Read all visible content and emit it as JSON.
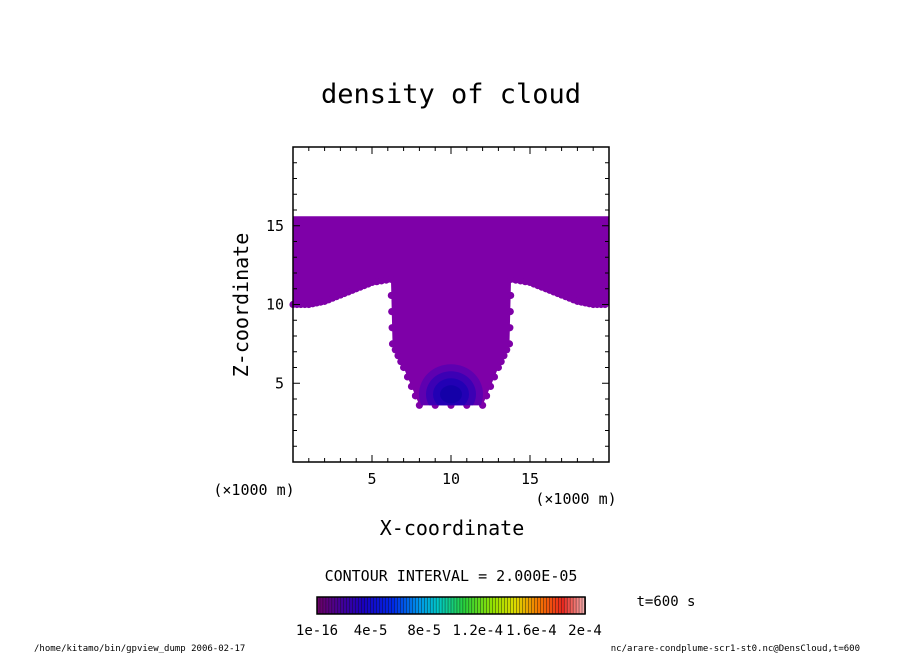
{
  "chart_data": {
    "type": "heatmap",
    "title": "density of cloud",
    "xlabel": "X-coordinate",
    "ylabel": "Z-coordinate",
    "x_unit": "(×1000 m)",
    "y_unit": "(×1000 m)",
    "xlim": [
      0,
      20
    ],
    "ylim": [
      0,
      20
    ],
    "x_ticks": [
      5,
      10,
      15
    ],
    "y_ticks": [
      5,
      10,
      15
    ],
    "contour_interval_text": "CONTOUR INTERVAL = 2.000E-05",
    "time_text": "t=600 s",
    "colorbar": {
      "min": 1e-16,
      "max": 0.0002,
      "tick_labels": [
        "1e-16",
        "4e-5",
        "8e-5",
        "1.2e-4",
        "1.6e-4",
        "2e-4"
      ]
    },
    "footer_left": "/home/kitamo/bin/gpview_dump  2006-02-17",
    "footer_right": "nc/arare-condplume-scr1-st0.nc@DensCloud,t=600",
    "cloud_region": {
      "top_z": 15.6,
      "plume_x": [
        6.2,
        13.8
      ],
      "plume_bottom_z": 3.6,
      "core": {
        "x": 10.0,
        "z": 4.3,
        "peak_value": 4e-05
      },
      "base_profile": [
        {
          "x": 0.0,
          "z": 10.0
        },
        {
          "x": 1.0,
          "z": 10.0
        },
        {
          "x": 2.0,
          "z": 10.2
        },
        {
          "x": 3.0,
          "z": 10.6
        },
        {
          "x": 4.0,
          "z": 11.0
        },
        {
          "x": 5.0,
          "z": 11.4
        },
        {
          "x": 6.2,
          "z": 11.6
        },
        {
          "x": 6.3,
          "z": 7.5
        },
        {
          "x": 7.0,
          "z": 6.0
        },
        {
          "x": 8.0,
          "z": 3.6
        },
        {
          "x": 12.0,
          "z": 3.6
        },
        {
          "x": 13.0,
          "z": 6.0
        },
        {
          "x": 13.7,
          "z": 7.5
        },
        {
          "x": 13.8,
          "z": 11.6
        },
        {
          "x": 15.0,
          "z": 11.4
        },
        {
          "x": 16.0,
          "z": 11.0
        },
        {
          "x": 17.0,
          "z": 10.6
        },
        {
          "x": 18.0,
          "z": 10.2
        },
        {
          "x": 19.0,
          "z": 10.0
        },
        {
          "x": 20.0,
          "z": 10.0
        }
      ]
    }
  },
  "colors": {
    "base_fill": "#7e00a8",
    "core_levels": [
      "#5e00b0",
      "#3c00b4",
      "#2200b4",
      "#1400a8"
    ]
  }
}
